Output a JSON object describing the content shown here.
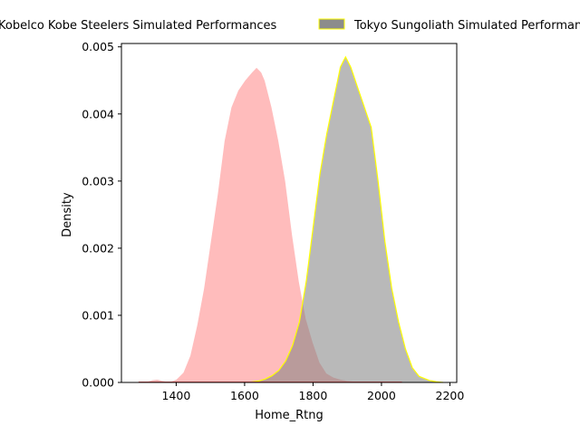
{
  "chart_data": {
    "type": "area",
    "xlabel": "Home_Rtng",
    "ylabel": "Density",
    "xlim": [
      1240,
      2220
    ],
    "ylim": [
      0,
      0.00505
    ],
    "xticks": [
      1400,
      1600,
      1800,
      2000,
      2200
    ],
    "yticks": [
      0.0,
      0.001,
      0.002,
      0.003,
      0.004,
      0.005
    ],
    "ytick_labels": [
      "0.000",
      "0.001",
      "0.002",
      "0.003",
      "0.004",
      "0.005"
    ],
    "xtick_labels": [
      "1400",
      "1600",
      "1800",
      "2000",
      "2200"
    ],
    "legend_placement": "top (above plot, two columns)",
    "grid": false,
    "series": [
      {
        "name": "Kobelco Kobe Steelers Simulated Performances",
        "fill_color": "#ffb8b8",
        "edge_color": "#ffffff",
        "x": [
          1290,
          1310,
          1330,
          1345,
          1360,
          1380,
          1400,
          1420,
          1440,
          1460,
          1480,
          1500,
          1520,
          1540,
          1560,
          1580,
          1600,
          1620,
          1635,
          1650,
          1660,
          1680,
          1700,
          1720,
          1740,
          1760,
          1780,
          1800,
          1820,
          1840,
          1860,
          1880,
          1900,
          1920,
          1940,
          1960,
          1980,
          2000,
          2020,
          2040,
          2060
        ],
        "y": [
          0.0,
          1e-05,
          4e-05,
          5e-05,
          3e-05,
          1e-05,
          5e-05,
          0.00015,
          0.0004,
          0.00085,
          0.0014,
          0.0021,
          0.0028,
          0.0036,
          0.0041,
          0.00435,
          0.0045,
          0.00462,
          0.0047,
          0.00462,
          0.0045,
          0.0041,
          0.0036,
          0.003,
          0.0022,
          0.0015,
          0.00095,
          0.0006,
          0.0003,
          0.00014,
          8e-05,
          5e-05,
          3e-05,
          2e-05,
          1e-05,
          1e-05,
          5e-06,
          3e-06,
          2e-06,
          1e-06,
          0.0
        ]
      },
      {
        "name": "Tokyo Sungoliath Simulated Performances",
        "fill_color": "#808080",
        "edge_color": "#ffff00",
        "x": [
          1610,
          1640,
          1660,
          1680,
          1700,
          1720,
          1740,
          1760,
          1780,
          1800,
          1820,
          1840,
          1860,
          1880,
          1895,
          1910,
          1930,
          1950,
          1970,
          1990,
          2010,
          2030,
          2050,
          2070,
          2090,
          2110,
          2140,
          2160,
          2180
        ],
        "y": [
          0.0,
          2e-05,
          5e-05,
          0.0001,
          0.00018,
          0.00032,
          0.00055,
          0.0009,
          0.0015,
          0.0023,
          0.0031,
          0.0037,
          0.0042,
          0.0047,
          0.00485,
          0.0047,
          0.0044,
          0.0041,
          0.0038,
          0.003,
          0.0021,
          0.0014,
          0.0009,
          0.0005,
          0.00022,
          9e-05,
          3e-05,
          1e-05,
          0.0
        ]
      }
    ]
  }
}
